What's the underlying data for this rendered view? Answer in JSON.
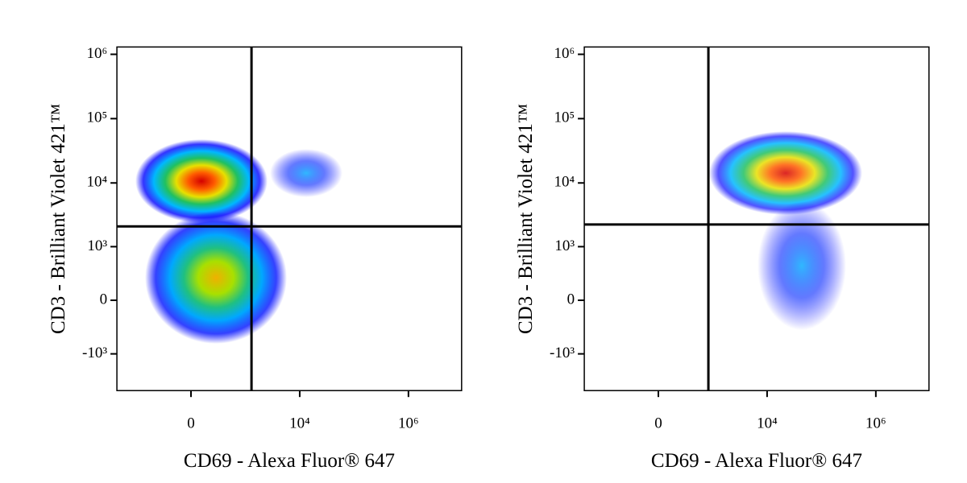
{
  "chart_data": [
    {
      "type": "scatter",
      "xlabel": "CD69 - Alexa Fluor® 647",
      "ylabel": "CD3 - Brilliant Violet 421™",
      "xscale": "biexponential",
      "yscale": "biexponential",
      "xlim": [
        -2300,
        9500000
      ],
      "ylim": [
        -3800,
        1300000
      ],
      "xticks": [
        0,
        {
          "value": 10000,
          "label": "10⁴"
        },
        {
          "value": 1000000,
          "label": "10⁶"
        }
      ],
      "yticks": [
        {
          "value": 1000000,
          "label": "10⁶"
        },
        {
          "value": 100000,
          "label": "10⁵"
        },
        {
          "value": 10000,
          "label": "10⁴"
        },
        {
          "value": 1000,
          "label": "10³"
        },
        0,
        {
          "value": -1000,
          "label": "-10³"
        }
      ],
      "gates": {
        "x": 1290,
        "y": 2100
      }
    },
    {
      "type": "scatter",
      "xlabel": "CD69 - Alexa Fluor® 647",
      "ylabel": "CD3 - Brilliant Violet 421™",
      "xscale": "biexponential",
      "yscale": "biexponential",
      "xlim": [
        -2300,
        9500000
      ],
      "ylim": [
        -3800,
        1300000
      ],
      "xticks": [
        0,
        {
          "value": 10000,
          "label": "10⁴"
        },
        {
          "value": 1000000,
          "label": "10⁶"
        }
      ],
      "yticks": [
        {
          "value": 1000000,
          "label": "10⁶"
        },
        {
          "value": 100000,
          "label": "10⁵"
        },
        {
          "value": 10000,
          "label": "10⁴"
        },
        {
          "value": 1000,
          "label": "10³"
        },
        0,
        {
          "value": -1000,
          "label": "-10³"
        }
      ],
      "gates": {
        "x": 820,
        "y": 2250
      }
    }
  ]
}
